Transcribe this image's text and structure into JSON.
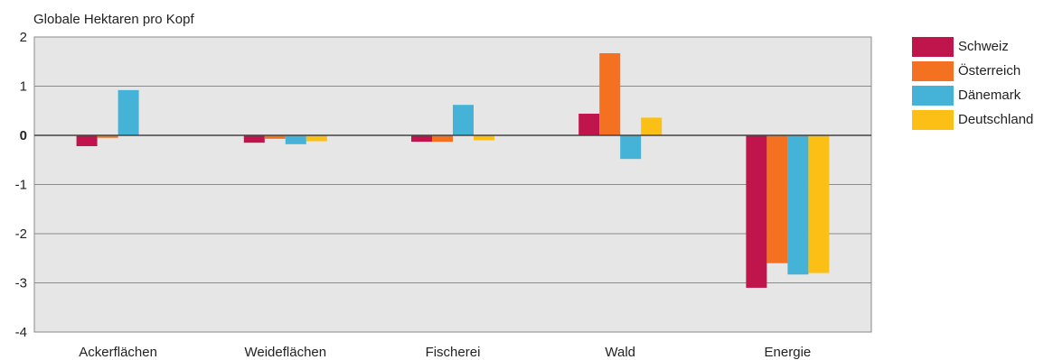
{
  "chart_data": {
    "type": "bar",
    "ylabel": "Globale Hektaren pro Kopf",
    "xlabel": "",
    "ylim": [
      -4,
      2
    ],
    "yticks": [
      2,
      1,
      0,
      -1,
      -2,
      -3,
      -4
    ],
    "grid": true,
    "legend_position": "right",
    "categories": [
      "Ackerflächen",
      "Weideflächen",
      "Fischerei",
      "Wald",
      "Energie"
    ],
    "series": [
      {
        "name": "Schweiz",
        "color": "#c0144c",
        "values": [
          -0.22,
          -0.15,
          -0.13,
          0.44,
          -3.1
        ]
      },
      {
        "name": "Österreich",
        "color": "#f47121",
        "values": [
          -0.05,
          -0.07,
          -0.13,
          1.67,
          -2.6
        ]
      },
      {
        "name": "Dänemark",
        "color": "#45b3d7",
        "values": [
          0.92,
          -0.18,
          0.62,
          -0.48,
          -2.83
        ]
      },
      {
        "name": "Deutschland",
        "color": "#fbbf15",
        "values": [
          0.0,
          -0.12,
          -0.1,
          0.36,
          -2.8
        ]
      }
    ]
  }
}
